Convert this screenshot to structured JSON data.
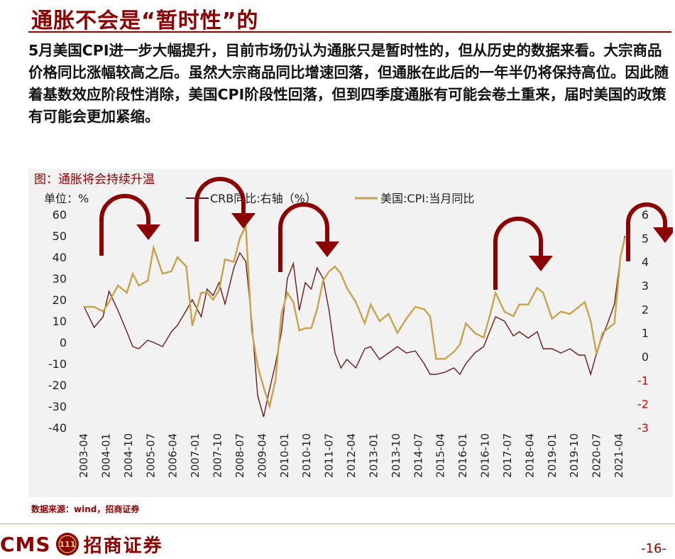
{
  "slide": {
    "title": "通胀不会是“暂时性”的",
    "paragraph": "5月美国CPI进一步大幅提升，目前市场仍认为通胀只是暂时性的，但从历史的数据来看。大宗商品价格同比涨幅较高之后。虽然大宗商品同比增速回落，但通胀在此后的一年半仍将保持高位。因此随着基数效应阶段性消除，美国CPI阶段性回落，但到四季度通胀有可能会卷土重来，届时美国的政策有可能会更加紧缩。",
    "source": "数据来源：wind，招商证券",
    "logo_text": "CMS",
    "logo_badge": "111",
    "logo_cn": "招商证券",
    "page_number": "-16-"
  },
  "chart_data": {
    "type": "line",
    "title": "图：通胀将会持续升温",
    "unit_label": "单位：%",
    "legend": [
      "CRB同比:右轴（%）",
      "美国:CPI:当月同比"
    ],
    "legend_placement": "top",
    "grid": false,
    "colors": {
      "crb": "#6b1a1a",
      "cpi": "#c8a24a",
      "arrow": "#8b0000",
      "right_axis_negative": "#d40000"
    },
    "x_ticks": [
      "2003-04",
      "2004-01",
      "2004-10",
      "2005-07",
      "2006-04",
      "2007-01",
      "2007-10",
      "2008-07",
      "2009-04",
      "2010-01",
      "2010-10",
      "2011-07",
      "2012-04",
      "2013-01",
      "2013-10",
      "2014-07",
      "2015-04",
      "2016-01",
      "2016-10",
      "2017-07",
      "2018-04",
      "2019-01",
      "2019-10",
      "2020-07",
      "2021-04"
    ],
    "left_axis": {
      "ticks": [
        60,
        50,
        40,
        30,
        20,
        10,
        0,
        -10,
        -20,
        -30,
        -40
      ],
      "ylim": [
        -40,
        60
      ]
    },
    "right_axis": {
      "ticks": [
        6,
        5,
        4,
        3,
        2,
        1,
        0,
        -1,
        -2,
        -3
      ],
      "ylim": [
        -3,
        6
      ]
    },
    "series": [
      {
        "name": "CRB同比:右轴（%）",
        "axis": "left",
        "x": [
          2003.25,
          2003.6,
          2003.9,
          2004.1,
          2004.4,
          2004.7,
          2004.9,
          2005.1,
          2005.4,
          2005.6,
          2005.9,
          2006.2,
          2006.4,
          2006.7,
          2006.9,
          2007.2,
          2007.4,
          2007.6,
          2007.8,
          2008.0,
          2008.3,
          2008.5,
          2008.7,
          2008.9,
          2009.1,
          2009.3,
          2009.5,
          2009.7,
          2009.9,
          2010.1,
          2010.3,
          2010.5,
          2010.7,
          2010.9,
          2011.1,
          2011.3,
          2011.5,
          2011.7,
          2011.9,
          2012.1,
          2012.4,
          2012.7,
          2012.9,
          2013.2,
          2013.5,
          2013.8,
          2014.1,
          2014.4,
          2014.7,
          2014.9,
          2015.1,
          2015.4,
          2015.7,
          2015.9,
          2016.1,
          2016.4,
          2016.7,
          2016.9,
          2017.1,
          2017.4,
          2017.7,
          2017.9,
          2018.2,
          2018.5,
          2018.7,
          2019.0,
          2019.3,
          2019.6,
          2019.9,
          2020.1,
          2020.3,
          2020.5,
          2020.7,
          2020.9,
          2021.1,
          2021.3,
          2021.45
        ],
        "values": [
          17,
          7,
          12,
          24,
          15,
          5,
          -2,
          -3,
          1,
          0,
          -2,
          5,
          8,
          15,
          20,
          12,
          25,
          22,
          28,
          18,
          35,
          42,
          38,
          10,
          -25,
          -35,
          -22,
          -10,
          5,
          30,
          37,
          15,
          28,
          25,
          35,
          30,
          15,
          -5,
          -12,
          -8,
          -12,
          -3,
          -2,
          -8,
          -5,
          -2,
          -5,
          -4,
          -10,
          -15,
          -15,
          -14,
          -12,
          -15,
          -10,
          -5,
          -2,
          5,
          12,
          10,
          3,
          5,
          2,
          5,
          -3,
          -3,
          -5,
          -3,
          -6,
          -6,
          -15,
          -5,
          3,
          10,
          18,
          40,
          50
        ]
      },
      {
        "name": "美国:CPI:当月同比",
        "axis": "right",
        "x": [
          2003.25,
          2003.6,
          2003.9,
          2004.1,
          2004.4,
          2004.7,
          2004.9,
          2005.1,
          2005.4,
          2005.6,
          2005.9,
          2006.2,
          2006.4,
          2006.7,
          2006.9,
          2007.2,
          2007.4,
          2007.6,
          2007.8,
          2008.0,
          2008.3,
          2008.5,
          2008.7,
          2008.9,
          2009.1,
          2009.3,
          2009.5,
          2009.7,
          2009.9,
          2010.1,
          2010.3,
          2010.5,
          2010.7,
          2010.9,
          2011.1,
          2011.3,
          2011.5,
          2011.7,
          2011.9,
          2012.1,
          2012.4,
          2012.7,
          2012.9,
          2013.2,
          2013.5,
          2013.8,
          2014.1,
          2014.4,
          2014.7,
          2014.9,
          2015.1,
          2015.4,
          2015.7,
          2015.9,
          2016.1,
          2016.4,
          2016.7,
          2016.9,
          2017.1,
          2017.4,
          2017.7,
          2017.9,
          2018.2,
          2018.5,
          2018.7,
          2019.0,
          2019.3,
          2019.6,
          2019.9,
          2020.1,
          2020.3,
          2020.5,
          2020.7,
          2020.9,
          2021.1,
          2021.3,
          2021.45
        ],
        "values": [
          2.1,
          2.1,
          1.9,
          2.3,
          3.0,
          2.7,
          3.5,
          3.0,
          3.2,
          4.6,
          3.5,
          3.6,
          4.2,
          3.8,
          1.3,
          2.7,
          2.7,
          2.4,
          2.8,
          4.1,
          4.0,
          5.0,
          5.5,
          1.1,
          -0.4,
          -1.3,
          -2.1,
          -1.0,
          1.8,
          2.7,
          2.3,
          1.1,
          1.2,
          1.2,
          2.0,
          3.2,
          3.6,
          3.8,
          3.5,
          2.9,
          2.3,
          1.4,
          2.2,
          1.5,
          1.8,
          1.0,
          1.6,
          2.1,
          2.0,
          1.7,
          -0.1,
          -0.1,
          0.2,
          0.5,
          1.4,
          1.0,
          0.8,
          1.7,
          2.7,
          1.9,
          1.7,
          2.2,
          2.2,
          2.9,
          2.7,
          1.6,
          1.9,
          1.8,
          2.1,
          2.3,
          1.5,
          0.1,
          1.0,
          1.2,
          1.4,
          4.2,
          5.0
        ]
      }
    ],
    "annotations": [
      "curved-arrow",
      "curved-arrow",
      "curved-arrow",
      "curved-arrow",
      "curved-arrow"
    ]
  }
}
